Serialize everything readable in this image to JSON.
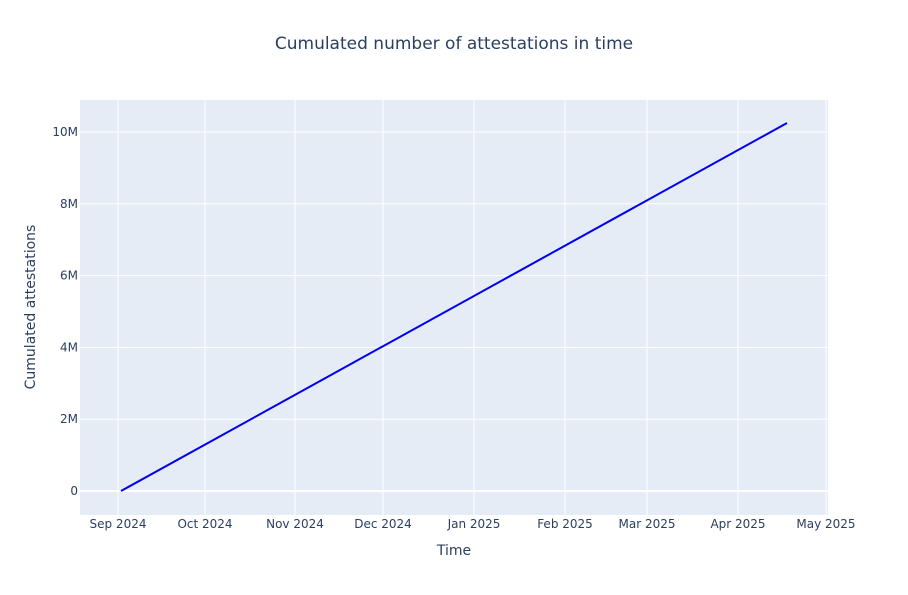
{
  "chart_data": {
    "type": "line",
    "title": "Cumulated number of attestations in time",
    "xlabel": "Time",
    "ylabel": "Cumulated attestations",
    "x_ticks": [
      "Sep 2024",
      "Oct 2024",
      "Nov 2024",
      "Dec 2024",
      "Jan 2025",
      "Feb 2025",
      "Mar 2025",
      "Apr 2025",
      "May 2025"
    ],
    "y_ticks": [
      "0",
      "2M",
      "4M",
      "6M",
      "8M",
      "10M"
    ],
    "y_tick_values": [
      0,
      2000000,
      4000000,
      6000000,
      8000000,
      10000000
    ],
    "ylim": [
      -650000,
      10900000
    ],
    "grid": true,
    "legend": false,
    "series": [
      {
        "name": "Cumulated attestations",
        "color": "#0000ee",
        "x": [
          "2024-09-02",
          "2025-04-19"
        ],
        "values": [
          0,
          10250000
        ]
      }
    ]
  }
}
